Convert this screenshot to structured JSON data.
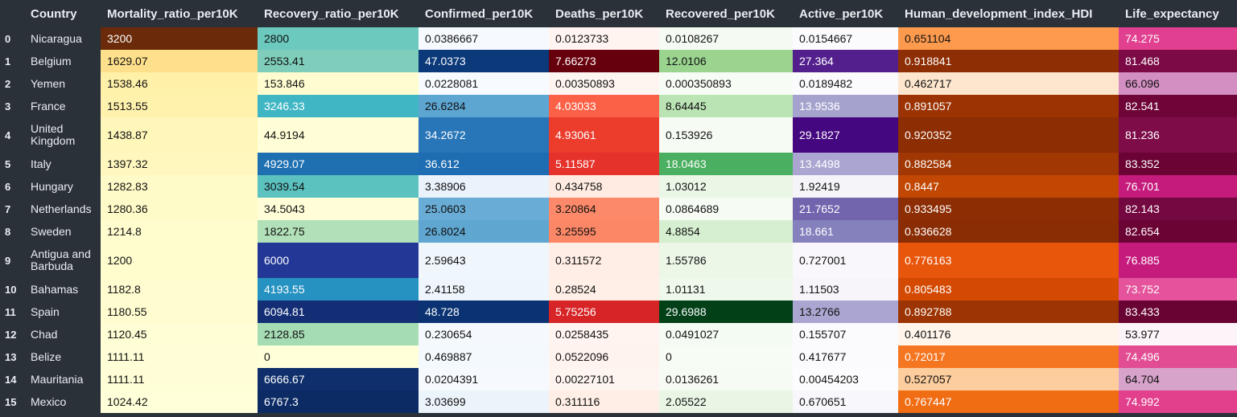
{
  "columns": [
    "Country",
    "Mortality_ratio_per10K",
    "Recovery_ratio_per10K",
    "Confirmed_per10K",
    "Deaths_per10K",
    "Recovered_per10K",
    "Active_per10K",
    "Human_development_index_HDI",
    "Life_expectancy"
  ],
  "rows": [
    {
      "index": "0",
      "cells": [
        "Nicaragua",
        "3200",
        "2800",
        "0.0386667",
        "0.0123733",
        "0.0108267",
        "0.0154667",
        "0.651104",
        "74.275"
      ]
    },
    {
      "index": "1",
      "cells": [
        "Belgium",
        "1629.07",
        "2553.41",
        "47.0373",
        "7.66273",
        "12.0106",
        "27.364",
        "0.918841",
        "81.468"
      ]
    },
    {
      "index": "2",
      "cells": [
        "Yemen",
        "1538.46",
        "153.846",
        "0.0228081",
        "0.00350893",
        "0.000350893",
        "0.0189482",
        "0.462717",
        "66.096"
      ]
    },
    {
      "index": "3",
      "cells": [
        "France",
        "1513.55",
        "3246.33",
        "26.6284",
        "4.03033",
        "8.64445",
        "13.9536",
        "0.891057",
        "82.541"
      ]
    },
    {
      "index": "4",
      "cells": [
        "United Kingdom",
        "1438.87",
        "44.9194",
        "34.2672",
        "4.93061",
        "0.153926",
        "29.1827",
        "0.920352",
        "81.236"
      ]
    },
    {
      "index": "5",
      "cells": [
        "Italy",
        "1397.32",
        "4929.07",
        "36.612",
        "5.11587",
        "18.0463",
        "13.4498",
        "0.882584",
        "83.352"
      ]
    },
    {
      "index": "6",
      "cells": [
        "Hungary",
        "1282.83",
        "3039.54",
        "3.38906",
        "0.434758",
        "1.03012",
        "1.92419",
        "0.8447",
        "76.701"
      ]
    },
    {
      "index": "7",
      "cells": [
        "Netherlands",
        "1280.36",
        "34.5043",
        "25.0603",
        "3.20864",
        "0.0864689",
        "21.7652",
        "0.933495",
        "82.143"
      ]
    },
    {
      "index": "8",
      "cells": [
        "Sweden",
        "1214.8",
        "1822.75",
        "26.8024",
        "3.25595",
        "4.8854",
        "18.661",
        "0.936628",
        "82.654"
      ]
    },
    {
      "index": "9",
      "cells": [
        "Antigua and Barbuda",
        "1200",
        "6000",
        "2.59643",
        "0.311572",
        "1.55786",
        "0.727001",
        "0.776163",
        "76.885"
      ]
    },
    {
      "index": "10",
      "cells": [
        "Bahamas",
        "1182.8",
        "4193.55",
        "2.41158",
        "0.28524",
        "1.01131",
        "1.11503",
        "0.805483",
        "73.752"
      ]
    },
    {
      "index": "11",
      "cells": [
        "Spain",
        "1180.55",
        "6094.81",
        "48.728",
        "5.75256",
        "29.6988",
        "13.2766",
        "0.892788",
        "83.433"
      ]
    },
    {
      "index": "12",
      "cells": [
        "Chad",
        "1120.45",
        "2128.85",
        "0.230654",
        "0.0258435",
        "0.0491027",
        "0.155707",
        "0.401176",
        "53.977"
      ]
    },
    {
      "index": "13",
      "cells": [
        "Belize",
        "1111.11",
        "0",
        "0.469887",
        "0.0522096",
        "0",
        "0.417677",
        "0.72017",
        "74.496"
      ]
    },
    {
      "index": "14",
      "cells": [
        "Mauritania",
        "1111.11",
        "6666.67",
        "0.0204391",
        "0.00227101",
        "0.0136261",
        "0.00454203",
        "0.527057",
        "64.704"
      ]
    },
    {
      "index": "15",
      "cells": [
        "Mexico",
        "1024.42",
        "6767.3",
        "3.03699",
        "0.311116",
        "2.05522",
        "0.670651",
        "0.767447",
        "74.992"
      ]
    }
  ],
  "cell_colors": [
    [
      [
        "#6b2a0a",
        "#ffffff"
      ],
      [
        "#6cc9bd",
        "#111111"
      ],
      [
        "#f6faff",
        "#111111"
      ],
      [
        "#fff4ef",
        "#111111"
      ],
      [
        "#f5fbf3",
        "#111111"
      ],
      [
        "#fbfafd",
        "#111111"
      ],
      [
        "#fd9a4e",
        "#111111"
      ],
      [
        "#e13f8f",
        "#ffffff"
      ]
    ],
    [
      [
        "#fedf8b",
        "#111111"
      ],
      [
        "#7fcdbb",
        "#111111"
      ],
      [
        "#0b397a",
        "#ffffff"
      ],
      [
        "#67000d",
        "#ffffff"
      ],
      [
        "#9ad48f",
        "#111111"
      ],
      [
        "#531f8d",
        "#ffffff"
      ],
      [
        "#8e2e04",
        "#ffffff"
      ],
      [
        "#7b0a46",
        "#ffffff"
      ]
    ],
    [
      [
        "#fff1a8",
        "#111111"
      ],
      [
        "#fffdd0",
        "#111111"
      ],
      [
        "#f7fbff",
        "#111111"
      ],
      [
        "#fff5f0",
        "#111111"
      ],
      [
        "#f7fcf5",
        "#111111"
      ],
      [
        "#fbfafd",
        "#111111"
      ],
      [
        "#fee6ce",
        "#111111"
      ],
      [
        "#d48fc2",
        "#111111"
      ]
    ],
    [
      [
        "#fff2ad",
        "#111111"
      ],
      [
        "#40b6c4",
        "#ffffff"
      ],
      [
        "#5da6d2",
        "#111111"
      ],
      [
        "#fb6146",
        "#ffffff"
      ],
      [
        "#bbe4b4",
        "#111111"
      ],
      [
        "#a5a3ce",
        "#ffffff"
      ],
      [
        "#9b3303",
        "#ffffff"
      ],
      [
        "#6e0437",
        "#ffffff"
      ]
    ],
    [
      [
        "#fff6ba",
        "#111111"
      ],
      [
        "#fffed6",
        "#111111"
      ],
      [
        "#2875b8",
        "#ffffff"
      ],
      [
        "#ec3c2c",
        "#ffffff"
      ],
      [
        "#f6fbf4",
        "#111111"
      ],
      [
        "#44077f",
        "#ffffff"
      ],
      [
        "#8c2d04",
        "#ffffff"
      ],
      [
        "#7d0c48",
        "#ffffff"
      ]
    ],
    [
      [
        "#fff7be",
        "#111111"
      ],
      [
        "#1f70b1",
        "#ffffff"
      ],
      [
        "#1e6cb1",
        "#ffffff"
      ],
      [
        "#e5322a",
        "#ffffff"
      ],
      [
        "#4aaf60",
        "#ffffff"
      ],
      [
        "#aaa6d1",
        "#ffffff"
      ],
      [
        "#a13703",
        "#ffffff"
      ],
      [
        "#6b0334",
        "#ffffff"
      ]
    ],
    [
      [
        "#fffbc8",
        "#111111"
      ],
      [
        "#5bc2c0",
        "#111111"
      ],
      [
        "#eaf2fb",
        "#111111"
      ],
      [
        "#ffebe1",
        "#111111"
      ],
      [
        "#eaf6e6",
        "#111111"
      ],
      [
        "#f5f4f9",
        "#111111"
      ],
      [
        "#c14702",
        "#ffffff"
      ],
      [
        "#c51b7d",
        "#ffffff"
      ]
    ],
    [
      [
        "#fffbc8",
        "#111111"
      ],
      [
        "#fffed8",
        "#111111"
      ],
      [
        "#69acd5",
        "#111111"
      ],
      [
        "#fc8a6a",
        "#111111"
      ],
      [
        "#f6fbf4",
        "#111111"
      ],
      [
        "#7265ae",
        "#ffffff"
      ],
      [
        "#8c2d04",
        "#ffffff"
      ],
      [
        "#740840",
        "#ffffff"
      ]
    ],
    [
      [
        "#fffdce",
        "#111111"
      ],
      [
        "#b2e0b8",
        "#111111"
      ],
      [
        "#5fa6d1",
        "#111111"
      ],
      [
        "#fc8767",
        "#111111"
      ],
      [
        "#d6efd0",
        "#111111"
      ],
      [
        "#8581bd",
        "#ffffff"
      ],
      [
        "#8a2c04",
        "#ffffff"
      ],
      [
        "#6c0335",
        "#ffffff"
      ]
    ],
    [
      [
        "#fffdce",
        "#111111"
      ],
      [
        "#233896",
        "#ffffff"
      ],
      [
        "#eff6fc",
        "#111111"
      ],
      [
        "#ffeee6",
        "#111111"
      ],
      [
        "#ecf7e8",
        "#111111"
      ],
      [
        "#f9f7fb",
        "#111111"
      ],
      [
        "#e8560b",
        "#ffffff"
      ],
      [
        "#c51b7d",
        "#ffffff"
      ]
    ],
    [
      [
        "#fffdd0",
        "#111111"
      ],
      [
        "#2592c1",
        "#ffffff"
      ],
      [
        "#eef5fc",
        "#111111"
      ],
      [
        "#ffefe7",
        "#111111"
      ],
      [
        "#eef8eb",
        "#111111"
      ],
      [
        "#f7f5fa",
        "#111111"
      ],
      [
        "#d44a03",
        "#ffffff"
      ],
      [
        "#e4539b",
        "#ffffff"
      ]
    ],
    [
      [
        "#fffdd0",
        "#111111"
      ],
      [
        "#132e75",
        "#ffffff"
      ],
      [
        "#0b3373",
        "#ffffff"
      ],
      [
        "#d72426",
        "#ffffff"
      ],
      [
        "#024018",
        "#ffffff"
      ],
      [
        "#aaa6d1",
        "#111111"
      ],
      [
        "#9c3403",
        "#ffffff"
      ],
      [
        "#690333",
        "#ffffff"
      ]
    ],
    [
      [
        "#fffed4",
        "#111111"
      ],
      [
        "#a5dcb4",
        "#111111"
      ],
      [
        "#f5f9fe",
        "#111111"
      ],
      [
        "#fff4ef",
        "#111111"
      ],
      [
        "#f4fbf2",
        "#111111"
      ],
      [
        "#fbfafd",
        "#111111"
      ],
      [
        "#fff5eb",
        "#111111"
      ],
      [
        "#fcf4f8",
        "#111111"
      ]
    ],
    [
      [
        "#fffed6",
        "#111111"
      ],
      [
        "#ffffd9",
        "#111111"
      ],
      [
        "#f4f9fe",
        "#111111"
      ],
      [
        "#fff3ee",
        "#111111"
      ],
      [
        "#f7fcf5",
        "#111111"
      ],
      [
        "#fbfafd",
        "#111111"
      ],
      [
        "#f57621",
        "#ffffff"
      ],
      [
        "#e24c93",
        "#ffffff"
      ]
    ],
    [
      [
        "#fffed6",
        "#111111"
      ],
      [
        "#0e2f6b",
        "#ffffff"
      ],
      [
        "#f6faff",
        "#111111"
      ],
      [
        "#fff5f0",
        "#111111"
      ],
      [
        "#f6fbf4",
        "#111111"
      ],
      [
        "#fcfbfd",
        "#111111"
      ],
      [
        "#fdcd9d",
        "#111111"
      ],
      [
        "#d8a3cb",
        "#111111"
      ]
    ],
    [
      [
        "#ffffd9",
        "#111111"
      ],
      [
        "#0c2a64",
        "#ffffff"
      ],
      [
        "#ecf4fb",
        "#111111"
      ],
      [
        "#ffeee6",
        "#111111"
      ],
      [
        "#e9f6e5",
        "#111111"
      ],
      [
        "#f8f7fb",
        "#111111"
      ],
      [
        "#f06d14",
        "#ffffff"
      ],
      [
        "#e23f8d",
        "#ffffff"
      ]
    ]
  ],
  "column_names": [
    "country",
    "mortality-ratio",
    "recovery-ratio",
    "confirmed",
    "deaths",
    "recovered",
    "active",
    "hdi",
    "life-expectancy"
  ]
}
